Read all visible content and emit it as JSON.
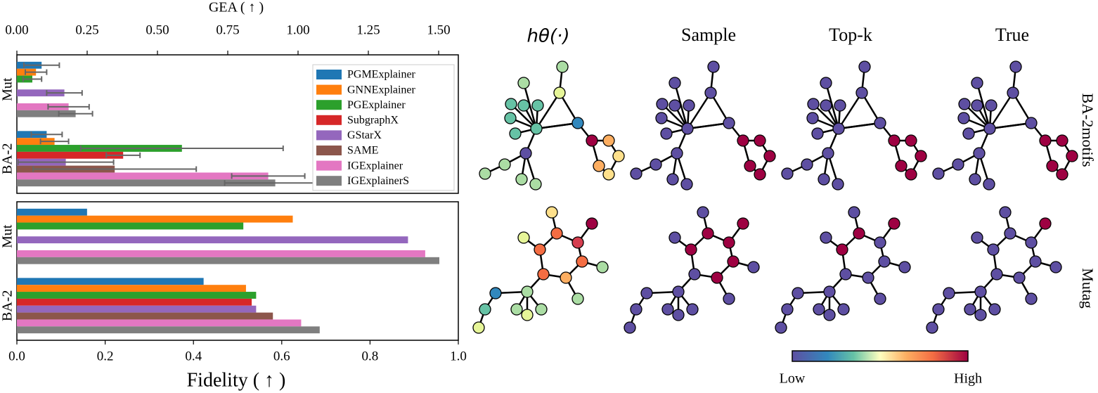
{
  "chart_data": [
    {
      "type": "barh",
      "xlabel": "GEA ( ↑ )",
      "categories": [
        "Mut",
        "BA-2"
      ],
      "xlim": [
        0,
        1.57
      ],
      "xticks": [
        {
          "value": 0,
          "label": "0.00"
        },
        {
          "value": 0.25,
          "label": "0.25"
        },
        {
          "value": 0.5,
          "label": "0.50"
        },
        {
          "value": 0.75,
          "label": "0.75"
        },
        {
          "value": 1,
          "label": "1.00"
        },
        {
          "value": 1.25,
          "label": "1.25"
        },
        {
          "value": 1.5,
          "label": "1.50"
        }
      ],
      "axis_position": "top",
      "legend": "upper right",
      "series": [
        {
          "name": "PGMExplainer",
          "color": "#1f77b4",
          "values": [
            0.088,
            0.106
          ],
          "errors": [
            0.063,
            0.055
          ]
        },
        {
          "name": "GNNExplainer",
          "color": "#ff7f0e",
          "values": [
            0.068,
            0.134
          ],
          "errors": [
            0.038,
            0.05
          ]
        },
        {
          "name": "PGExplainer",
          "color": "#2ca02c",
          "values": [
            0.055,
            0.587
          ],
          "errors": [
            0.033,
            0.36
          ]
        },
        {
          "name": "SubgraphX",
          "color": "#d62728",
          "values": [
            0,
            0.378
          ],
          "errors": [
            null,
            0.06
          ]
        },
        {
          "name": "GStarX",
          "color": "#9467bd",
          "values": [
            0.169,
            0.174
          ],
          "errors": [
            0.063,
            0.17
          ]
        },
        {
          "name": "SAME",
          "color": "#8c564b",
          "values": [
            0,
            0.348
          ],
          "errors": [
            null,
            0.29
          ]
        },
        {
          "name": "IGExplainer",
          "color": "#e377c2",
          "values": [
            0.184,
            0.894
          ],
          "errors": [
            0.073,
            0.13
          ]
        },
        {
          "name": "IGExplainerS",
          "color": "#7f7f7f",
          "values": [
            0.209,
            0.919
          ],
          "errors": [
            0.06,
            0.18
          ]
        }
      ]
    },
    {
      "type": "barh",
      "xlabel": "Fidelity ( ↑ )",
      "categories": [
        "Mut",
        "BA-2"
      ],
      "xlim": [
        0,
        1
      ],
      "xticks": [
        {
          "value": 0,
          "label": "0.0"
        },
        0.2,
        0.4,
        0.6,
        0.8,
        {
          "value": 1,
          "label": "1.0"
        }
      ],
      "axis_position": "bottom",
      "series": [
        {
          "color": "#1f77b4",
          "values": [
            0.159,
            0.423
          ]
        },
        {
          "color": "#ff7f0e",
          "values": [
            0.625,
            0.519
          ]
        },
        {
          "color": "#2ca02c",
          "values": [
            0.513,
            0.542
          ]
        },
        {
          "color": "#d62728",
          "values": [
            0,
            0.532
          ]
        },
        {
          "color": "#9467bd",
          "values": [
            0.886,
            0.542
          ]
        },
        {
          "color": "#8c564b",
          "values": [
            0,
            0.58
          ]
        },
        {
          "color": "#e377c2",
          "values": [
            0.925,
            0.644
          ]
        },
        {
          "color": "#7f7f7f",
          "values": [
            0.957,
            0.686
          ]
        }
      ]
    }
  ],
  "graphs": {
    "columns": [
      "hθ(·)",
      "Sample",
      "Top-k",
      "True"
    ],
    "rows": [
      "BA-2motifs",
      "Mutag"
    ],
    "colorbar": {
      "low": "Low",
      "high": "High"
    }
  }
}
